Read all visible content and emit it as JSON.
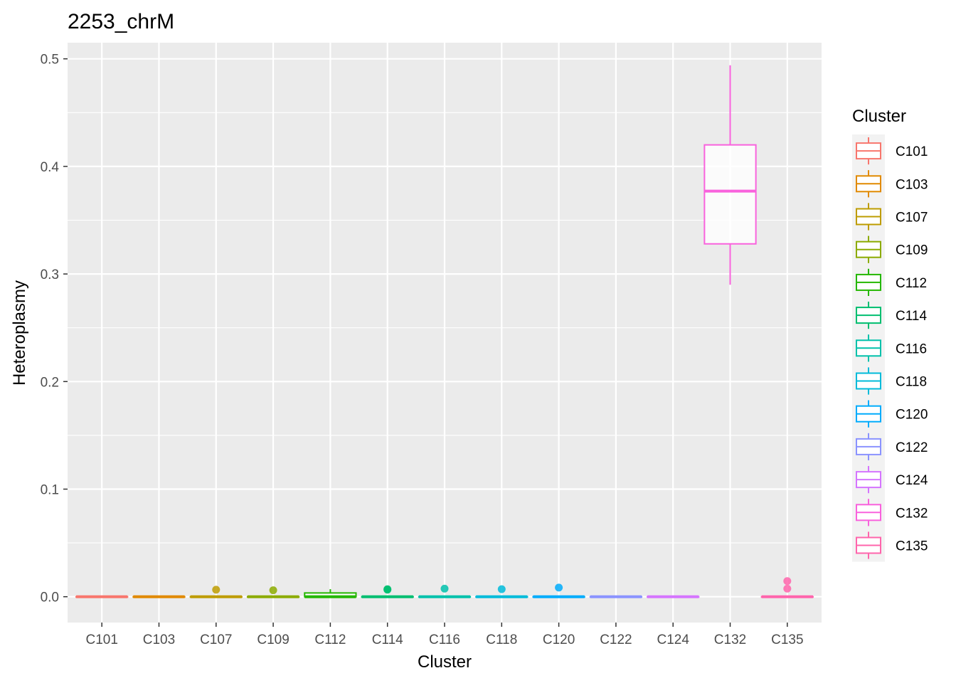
{
  "chart_data": {
    "type": "boxplot",
    "title": "2253_chrM",
    "xlabel": "Cluster",
    "ylabel": "Heteroplasmy",
    "ylim": [
      -0.024,
      0.515
    ],
    "yticks": [
      0.0,
      0.1,
      0.2,
      0.3,
      0.4,
      0.5
    ],
    "ytick_labels": [
      "0.0",
      "0.1",
      "0.2",
      "0.3",
      "0.4",
      "0.5"
    ],
    "grid": true,
    "legend": {
      "title": "Cluster",
      "position": "right"
    },
    "categories": [
      "C101",
      "C103",
      "C107",
      "C109",
      "C112",
      "C114",
      "C116",
      "C118",
      "C120",
      "C122",
      "C124",
      "C132",
      "C135"
    ],
    "colors": [
      "#F8766D",
      "#E18A00",
      "#BE9C00",
      "#8CAB00",
      "#24B700",
      "#00BE70",
      "#00C1AB",
      "#00BBDA",
      "#00ACFC",
      "#8B93FF",
      "#D575FE",
      "#F962DD",
      "#FF65AC"
    ],
    "boxes": [
      {
        "name": "C101",
        "min": 0,
        "q1": 0,
        "median": 0,
        "q3": 0,
        "max": 0,
        "outliers": []
      },
      {
        "name": "C103",
        "min": 0,
        "q1": 0,
        "median": 0,
        "q3": 0,
        "max": 0,
        "outliers": []
      },
      {
        "name": "C107",
        "min": 0,
        "q1": 0,
        "median": 0,
        "q3": 0,
        "max": 0,
        "outliers": [
          0.0065
        ]
      },
      {
        "name": "C109",
        "min": 0,
        "q1": 0,
        "median": 0,
        "q3": 0,
        "max": 0,
        "outliers": [
          0.006
        ]
      },
      {
        "name": "C112",
        "min": 0,
        "q1": 0,
        "median": 0,
        "q3": 0.0035,
        "max": 0.007,
        "outliers": []
      },
      {
        "name": "C114",
        "min": 0,
        "q1": 0,
        "median": 0,
        "q3": 0,
        "max": 0,
        "outliers": [
          0.0065,
          0.007
        ]
      },
      {
        "name": "C116",
        "min": 0,
        "q1": 0,
        "median": 0,
        "q3": 0,
        "max": 0,
        "outliers": [
          0.0075
        ]
      },
      {
        "name": "C118",
        "min": 0,
        "q1": 0,
        "median": 0,
        "q3": 0,
        "max": 0,
        "outliers": [
          0.007
        ]
      },
      {
        "name": "C120",
        "min": 0,
        "q1": 0,
        "median": 0,
        "q3": 0,
        "max": 0,
        "outliers": [
          0.0085
        ]
      },
      {
        "name": "C122",
        "min": 0,
        "q1": 0,
        "median": 0,
        "q3": 0,
        "max": 0,
        "outliers": []
      },
      {
        "name": "C124",
        "min": 0,
        "q1": 0,
        "median": 0,
        "q3": 0,
        "max": 0,
        "outliers": []
      },
      {
        "name": "C132",
        "min": 0.29,
        "q1": 0.328,
        "median": 0.377,
        "q3": 0.42,
        "max": 0.494,
        "outliers": []
      },
      {
        "name": "C135",
        "min": 0,
        "q1": 0,
        "median": 0,
        "q3": 0,
        "max": 0,
        "outliers": [
          0.0075,
          0.0145
        ]
      }
    ]
  }
}
